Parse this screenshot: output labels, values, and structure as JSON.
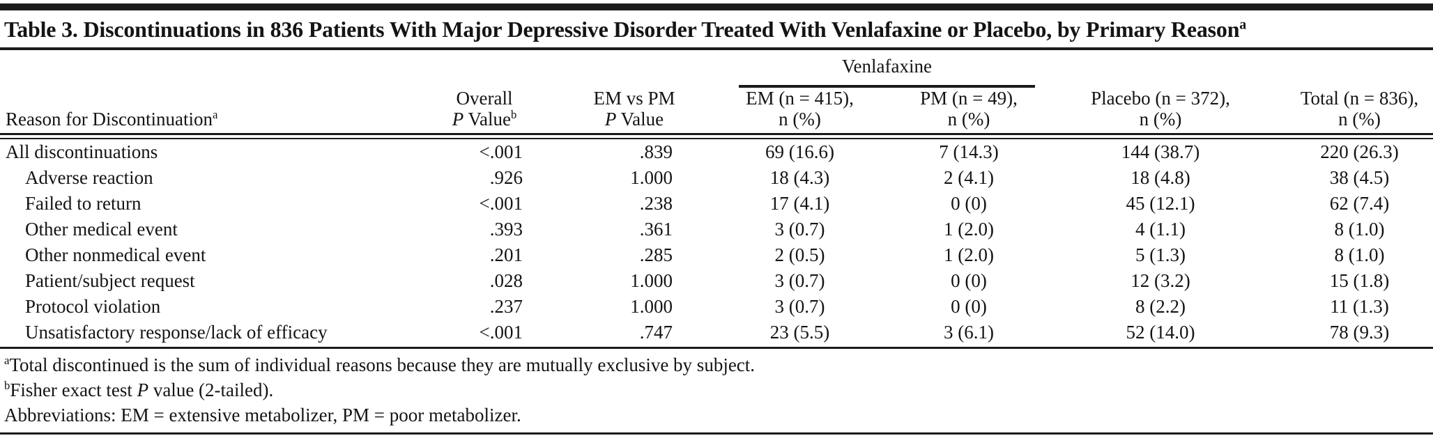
{
  "title": {
    "text": "Table 3. Discontinuations in 836 Patients With Major Depressive Disorder Treated With Venlafaxine or Placebo, by Primary Reason",
    "sup": "a"
  },
  "header": {
    "spanner_label": "Venlafaxine",
    "reason_col": {
      "label": "Reason for Discontinuation",
      "sup": "a"
    },
    "overall_col": {
      "line1": "Overall",
      "p": "P",
      "rest": " Value",
      "sup": "b"
    },
    "emvspm_col": {
      "line1": "EM vs PM",
      "p": "P",
      "rest": " Value"
    },
    "em_col": {
      "line1": "EM (n = 415),",
      "line2": "n (%)"
    },
    "pm_col": {
      "line1": "PM (n = 49),",
      "line2": "n (%)"
    },
    "placebo_col": {
      "line1": "Placebo (n = 372),",
      "line2": "n (%)"
    },
    "total_col": {
      "line1": "Total (n = 836),",
      "line2": "n (%)"
    }
  },
  "rows": [
    {
      "reason": "All discontinuations",
      "indent": false,
      "overall_p": "<.001",
      "em_vs_pm_p": ".839",
      "em": "69 (16.6)",
      "pm": "7 (14.3)",
      "placebo": "144 (38.7)",
      "total": "220 (26.3)"
    },
    {
      "reason": "Adverse reaction",
      "indent": true,
      "overall_p": ".926",
      "em_vs_pm_p": "1.000",
      "em": "18 (4.3)",
      "pm": "2 (4.1)",
      "placebo": "18 (4.8)",
      "total": "38 (4.5)"
    },
    {
      "reason": "Failed to return",
      "indent": true,
      "overall_p": "<.001",
      "em_vs_pm_p": ".238",
      "em": "17 (4.1)",
      "pm": "0 (0)",
      "placebo": "45 (12.1)",
      "total": "62 (7.4)"
    },
    {
      "reason": "Other medical event",
      "indent": true,
      "overall_p": ".393",
      "em_vs_pm_p": ".361",
      "em": "3 (0.7)",
      "pm": "1 (2.0)",
      "placebo": "4 (1.1)",
      "total": "8 (1.0)"
    },
    {
      "reason": "Other nonmedical event",
      "indent": true,
      "overall_p": ".201",
      "em_vs_pm_p": ".285",
      "em": "2 (0.5)",
      "pm": "1 (2.0)",
      "placebo": "5 (1.3)",
      "total": "8 (1.0)"
    },
    {
      "reason": "Patient/subject request",
      "indent": true,
      "overall_p": ".028",
      "em_vs_pm_p": "1.000",
      "em": "3 (0.7)",
      "pm": "0 (0)",
      "placebo": "12 (3.2)",
      "total": "15 (1.8)"
    },
    {
      "reason": "Protocol violation",
      "indent": true,
      "overall_p": ".237",
      "em_vs_pm_p": "1.000",
      "em": "3 (0.7)",
      "pm": "0 (0)",
      "placebo": "8 (2.2)",
      "total": "11 (1.3)"
    },
    {
      "reason": "Unsatisfactory response/lack of efficacy",
      "indent": true,
      "overall_p": "<.001",
      "em_vs_pm_p": ".747",
      "em": "23 (5.5)",
      "pm": "3 (6.1)",
      "placebo": "52 (14.0)",
      "total": "78 (9.3)"
    }
  ],
  "footnotes": [
    {
      "sup": "a",
      "text": "Total discontinued is the sum of individual reasons because they are mutually exclusive by subject."
    },
    {
      "sup": "b",
      "pre": "Fisher exact test ",
      "p": "P",
      "post": " value (2-tailed)."
    },
    {
      "text": "Abbreviations: EM = extensive metabolizer, PM = poor metabolizer."
    }
  ],
  "colors": {
    "rule": "#1b1b1b",
    "text": "#141414",
    "background": "#ffffff"
  }
}
